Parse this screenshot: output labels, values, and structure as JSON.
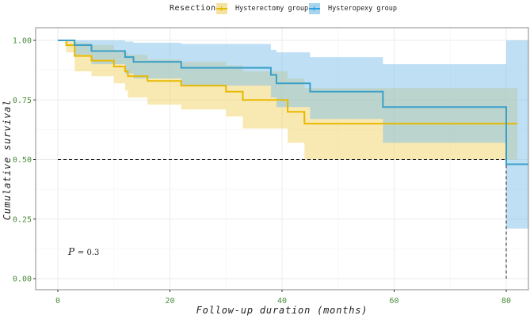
{
  "legend": {
    "title": "Resection",
    "items": [
      {
        "label": "Hysterectomy group",
        "color": "#e7b800",
        "fill": "#f5e2a0"
      },
      {
        "label": "Hysteropexy group",
        "color": "#2e9fdf",
        "fill": "#a9d4f0"
      }
    ]
  },
  "annotation": {
    "p_label": "P",
    "p_value": "= 0.3"
  },
  "chart_data": {
    "type": "line",
    "subtype": "kaplan-meier step curve with confidence bands",
    "title": "",
    "xlabel": "Follow-up duration (months)",
    "ylabel": "Cumulative survival",
    "xlim": [
      -4,
      84
    ],
    "ylim": [
      -0.02,
      1.04
    ],
    "x_ticks": [
      "0",
      "20",
      "40",
      "60",
      "80"
    ],
    "y_ticks": [
      "0.00",
      "0.25",
      "0.50",
      "0.75",
      "1.00"
    ],
    "grid": true,
    "legend_position": "top",
    "median_line": {
      "y": 0.5,
      "x": 80
    },
    "p_value": "P = 0.3",
    "series": [
      {
        "name": "Hysterectomy group",
        "color": "#e7b800",
        "steps": [
          [
            0,
            1.0
          ],
          [
            1.5,
            0.98
          ],
          [
            3,
            0.935
          ],
          [
            6,
            0.915
          ],
          [
            10,
            0.89
          ],
          [
            12,
            0.87
          ],
          [
            12.5,
            0.85
          ],
          [
            16,
            0.83
          ],
          [
            22,
            0.81
          ],
          [
            30,
            0.785
          ],
          [
            33,
            0.75
          ],
          [
            41,
            0.7
          ],
          [
            44,
            0.65
          ],
          [
            82,
            0.65
          ]
        ],
        "ci_lower": [
          [
            0,
            1.0
          ],
          [
            1.5,
            0.95
          ],
          [
            3,
            0.87
          ],
          [
            6,
            0.85
          ],
          [
            10,
            0.82
          ],
          [
            12,
            0.79
          ],
          [
            12.5,
            0.76
          ],
          [
            16,
            0.73
          ],
          [
            22,
            0.71
          ],
          [
            30,
            0.68
          ],
          [
            33,
            0.63
          ],
          [
            41,
            0.57
          ],
          [
            44,
            0.5
          ],
          [
            82,
            0.5
          ]
        ],
        "ci_upper": [
          [
            0,
            1.0
          ],
          [
            1.5,
            1.0
          ],
          [
            3,
            0.99
          ],
          [
            6,
            0.98
          ],
          [
            10,
            0.96
          ],
          [
            12,
            0.95
          ],
          [
            12.5,
            0.94
          ],
          [
            16,
            0.92
          ],
          [
            22,
            0.91
          ],
          [
            30,
            0.895
          ],
          [
            33,
            0.87
          ],
          [
            41,
            0.84
          ],
          [
            44,
            0.8
          ],
          [
            82,
            0.8
          ]
        ]
      },
      {
        "name": "Hysteropexy group",
        "color": "#2e9fdf",
        "steps": [
          [
            0,
            1.0
          ],
          [
            3,
            0.98
          ],
          [
            6,
            0.955
          ],
          [
            12,
            0.93
          ],
          [
            13.5,
            0.91
          ],
          [
            22,
            0.885
          ],
          [
            38,
            0.855
          ],
          [
            39,
            0.82
          ],
          [
            45,
            0.785
          ],
          [
            58,
            0.72
          ],
          [
            80,
            0.48
          ],
          [
            84,
            0.48
          ]
        ],
        "ci_lower": [
          [
            0,
            1.0
          ],
          [
            3,
            0.94
          ],
          [
            6,
            0.9
          ],
          [
            12,
            0.86
          ],
          [
            13.5,
            0.84
          ],
          [
            22,
            0.81
          ],
          [
            38,
            0.76
          ],
          [
            39,
            0.72
          ],
          [
            45,
            0.67
          ],
          [
            58,
            0.57
          ],
          [
            80,
            0.21
          ],
          [
            84,
            0.21
          ]
        ],
        "ci_upper": [
          [
            0,
            1.0
          ],
          [
            3,
            1.0
          ],
          [
            6,
            1.0
          ],
          [
            12,
            0.995
          ],
          [
            13.5,
            0.99
          ],
          [
            22,
            0.985
          ],
          [
            38,
            0.96
          ],
          [
            39,
            0.95
          ],
          [
            45,
            0.93
          ],
          [
            58,
            0.9
          ],
          [
            80,
            1.0
          ],
          [
            84,
            1.0
          ]
        ]
      }
    ]
  }
}
